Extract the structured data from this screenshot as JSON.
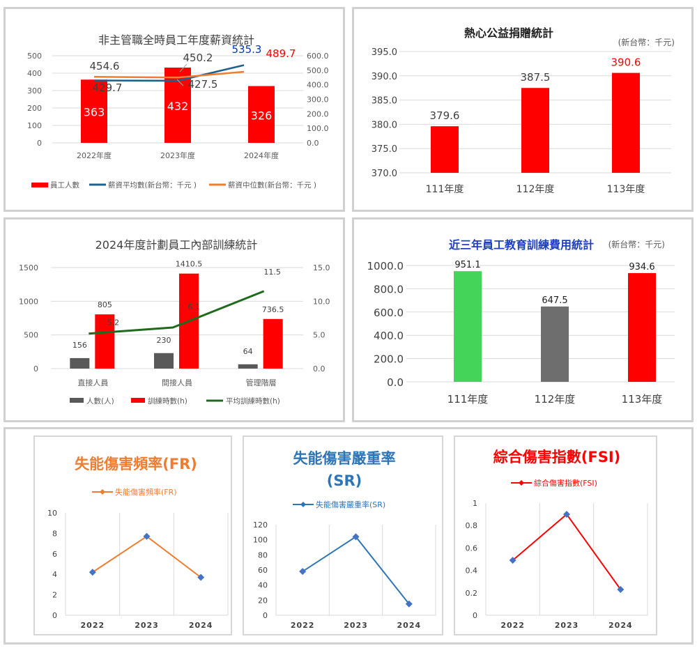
{
  "chart_data": [
    {
      "type": "bar",
      "title": "非主管職全時員工年度薪資統計",
      "categories": [
        "2022年度",
        "2023年度",
        "2024年度"
      ],
      "ylim": [
        0,
        500
      ],
      "y_ticks": [
        "500",
        "400",
        "300",
        "200",
        "100",
        "0"
      ],
      "y2lim": [
        0,
        600
      ],
      "y2_ticks": [
        "600.0",
        "500.0",
        "400.0",
        "300.0",
        "200.0",
        "100.0",
        "0.0"
      ],
      "series": [
        {
          "name": "員工人數",
          "type": "bar",
          "color": "#ff0000",
          "values": [
            363,
            432,
            326
          ],
          "labels": [
            "363",
            "432",
            "326"
          ]
        },
        {
          "name": "薪資平均數(新台幣：千元 )",
          "type": "line",
          "axis": "secondary",
          "color": "#1f5f8b",
          "values": [
            429.7,
            427.5,
            535.3
          ],
          "labels": [
            "429.7",
            "427.5",
            "535.3"
          ]
        },
        {
          "name": "薪資中位數(新台幣：千元 )",
          "type": "line",
          "axis": "secondary",
          "color": "#ed7d31",
          "values": [
            454.6,
            450.2,
            489.7
          ],
          "labels": [
            "454.6",
            "450.2",
            "489.7"
          ]
        }
      ],
      "legend": "bottom"
    },
    {
      "type": "bar",
      "title": "熱心公益捐贈統計",
      "unit_note": "(新台幣：千元)",
      "categories": [
        "111年度",
        "112年度",
        "113年度"
      ],
      "values": [
        379.6,
        387.5,
        390.6
      ],
      "labels": [
        "379.6",
        "387.5",
        "390.6"
      ],
      "ylim": [
        370,
        395
      ],
      "y_ticks": [
        "395.0",
        "390.0",
        "385.0",
        "380.0",
        "375.0",
        "370.0"
      ],
      "color": "#ff0000",
      "label_colors": [
        "#404040",
        "#404040",
        "#ff0000"
      ]
    },
    {
      "type": "bar",
      "title": "2024年度計劃員工內部訓練統計",
      "categories": [
        "直接人員",
        "間接人員",
        "管理階層"
      ],
      "ylim": [
        0,
        1500
      ],
      "y_ticks": [
        "1500",
        "1000",
        "500",
        "0"
      ],
      "y2lim": [
        0,
        15
      ],
      "y2_ticks": [
        "15.0",
        "10.0",
        "5.0",
        "0.0"
      ],
      "series": [
        {
          "name": "人數(人)",
          "type": "bar",
          "color": "#595959",
          "values": [
            156,
            230,
            64
          ],
          "labels": [
            "156",
            "230",
            "64"
          ]
        },
        {
          "name": "訓練時數(h)",
          "type": "bar",
          "color": "#ff0000",
          "values": [
            805,
            1410.5,
            736.5
          ],
          "labels": [
            "805",
            "1410.5",
            "736.5"
          ]
        },
        {
          "name": "平均訓練時數(h)",
          "type": "line",
          "axis": "secondary",
          "color": "#1e6b1e",
          "values": [
            5.2,
            6.1,
            11.5
          ],
          "labels": [
            "5.2",
            "6.1",
            "11.5"
          ]
        }
      ],
      "legend": "bottom"
    },
    {
      "type": "bar",
      "title": "近三年員工教育訓練費用統計",
      "unit_note": "(新台幣：千元)",
      "categories": [
        "111年度",
        "112年度",
        "113年度"
      ],
      "values": [
        951.1,
        647.5,
        934.6
      ],
      "labels": [
        "951.1",
        "647.5",
        "934.6"
      ],
      "colors": [
        "#44d45a",
        "#6e6e6e",
        "#ff0000"
      ],
      "ylim": [
        0,
        1000
      ],
      "y_ticks": [
        "1000.0",
        "800.0",
        "600.0",
        "400.0",
        "200.0",
        "0.0"
      ]
    },
    {
      "type": "line",
      "title": "失能傷害頻率(FR)",
      "legend_label": "失能傷害頻率(FR)",
      "color": "#ed7d31",
      "x": [
        "2022",
        "2023",
        "2024"
      ],
      "values": [
        4.2,
        7.7,
        3.7
      ],
      "ylim": [
        0,
        10
      ],
      "y_ticks": [
        "10",
        "8",
        "6",
        "4",
        "2",
        "0"
      ]
    },
    {
      "type": "line",
      "title_line1": "失能傷害嚴重率",
      "title_line2": "(SR)",
      "legend_label": "失能傷害嚴重率(SR)",
      "color": "#2e75b6",
      "x": [
        "2022",
        "2023",
        "2024"
      ],
      "values": [
        58,
        104,
        15
      ],
      "ylim": [
        0,
        120
      ],
      "y_ticks": [
        "120",
        "100",
        "80",
        "60",
        "40",
        "20",
        "0"
      ]
    },
    {
      "type": "line",
      "title": "綜合傷害指數(FSI)",
      "legend_label": "綜合傷害指數(FSI)",
      "color": "#ff0000",
      "x": [
        "2022",
        "2023",
        "2024"
      ],
      "values": [
        0.49,
        0.9,
        0.23
      ],
      "ylim": [
        0,
        1
      ],
      "y_ticks": [
        "1",
        "0.8",
        "0.6",
        "0.4",
        "0.2",
        "0"
      ]
    }
  ]
}
